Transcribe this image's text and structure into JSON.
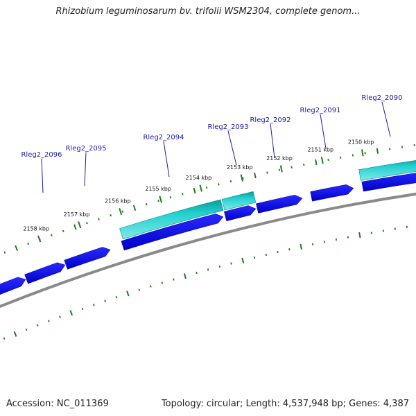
{
  "header": {
    "title": "Rhizobium leguminosarum bv. trifolii WSM2304, complete genom..."
  },
  "footer": {
    "accession": "Accession: NC_011369",
    "info": "Topology: circular; Length: 4,537,948 bp; Genes: 4,387"
  },
  "map": {
    "colors": {
      "backbone": "#8a8a8a",
      "cds": "#0a0ae6",
      "feature": "#22d0d0",
      "feature_edge": "#0a8c8c",
      "tick": "#1f7a1f",
      "label_line": "#1a1aa8"
    },
    "ticks": [
      {
        "label": "2158 kbp"
      },
      {
        "label": "2157 kbp"
      },
      {
        "label": "2156 kbp"
      },
      {
        "label": "2155 kbp"
      },
      {
        "label": "2154 kbp"
      },
      {
        "label": "2153 kbp"
      },
      {
        "label": "2152 kbp"
      },
      {
        "label": "2151 kbp"
      },
      {
        "label": "2150 kbp"
      }
    ],
    "genes": [
      {
        "label": "Rleg2_2096"
      },
      {
        "label": "Rleg2_2095"
      },
      {
        "label": "Rleg2_2094"
      },
      {
        "label": "Rleg2_2093"
      },
      {
        "label": "Rleg2_2092"
      },
      {
        "label": "Rleg2_2091"
      },
      {
        "label": "Rleg2_2090"
      }
    ]
  }
}
